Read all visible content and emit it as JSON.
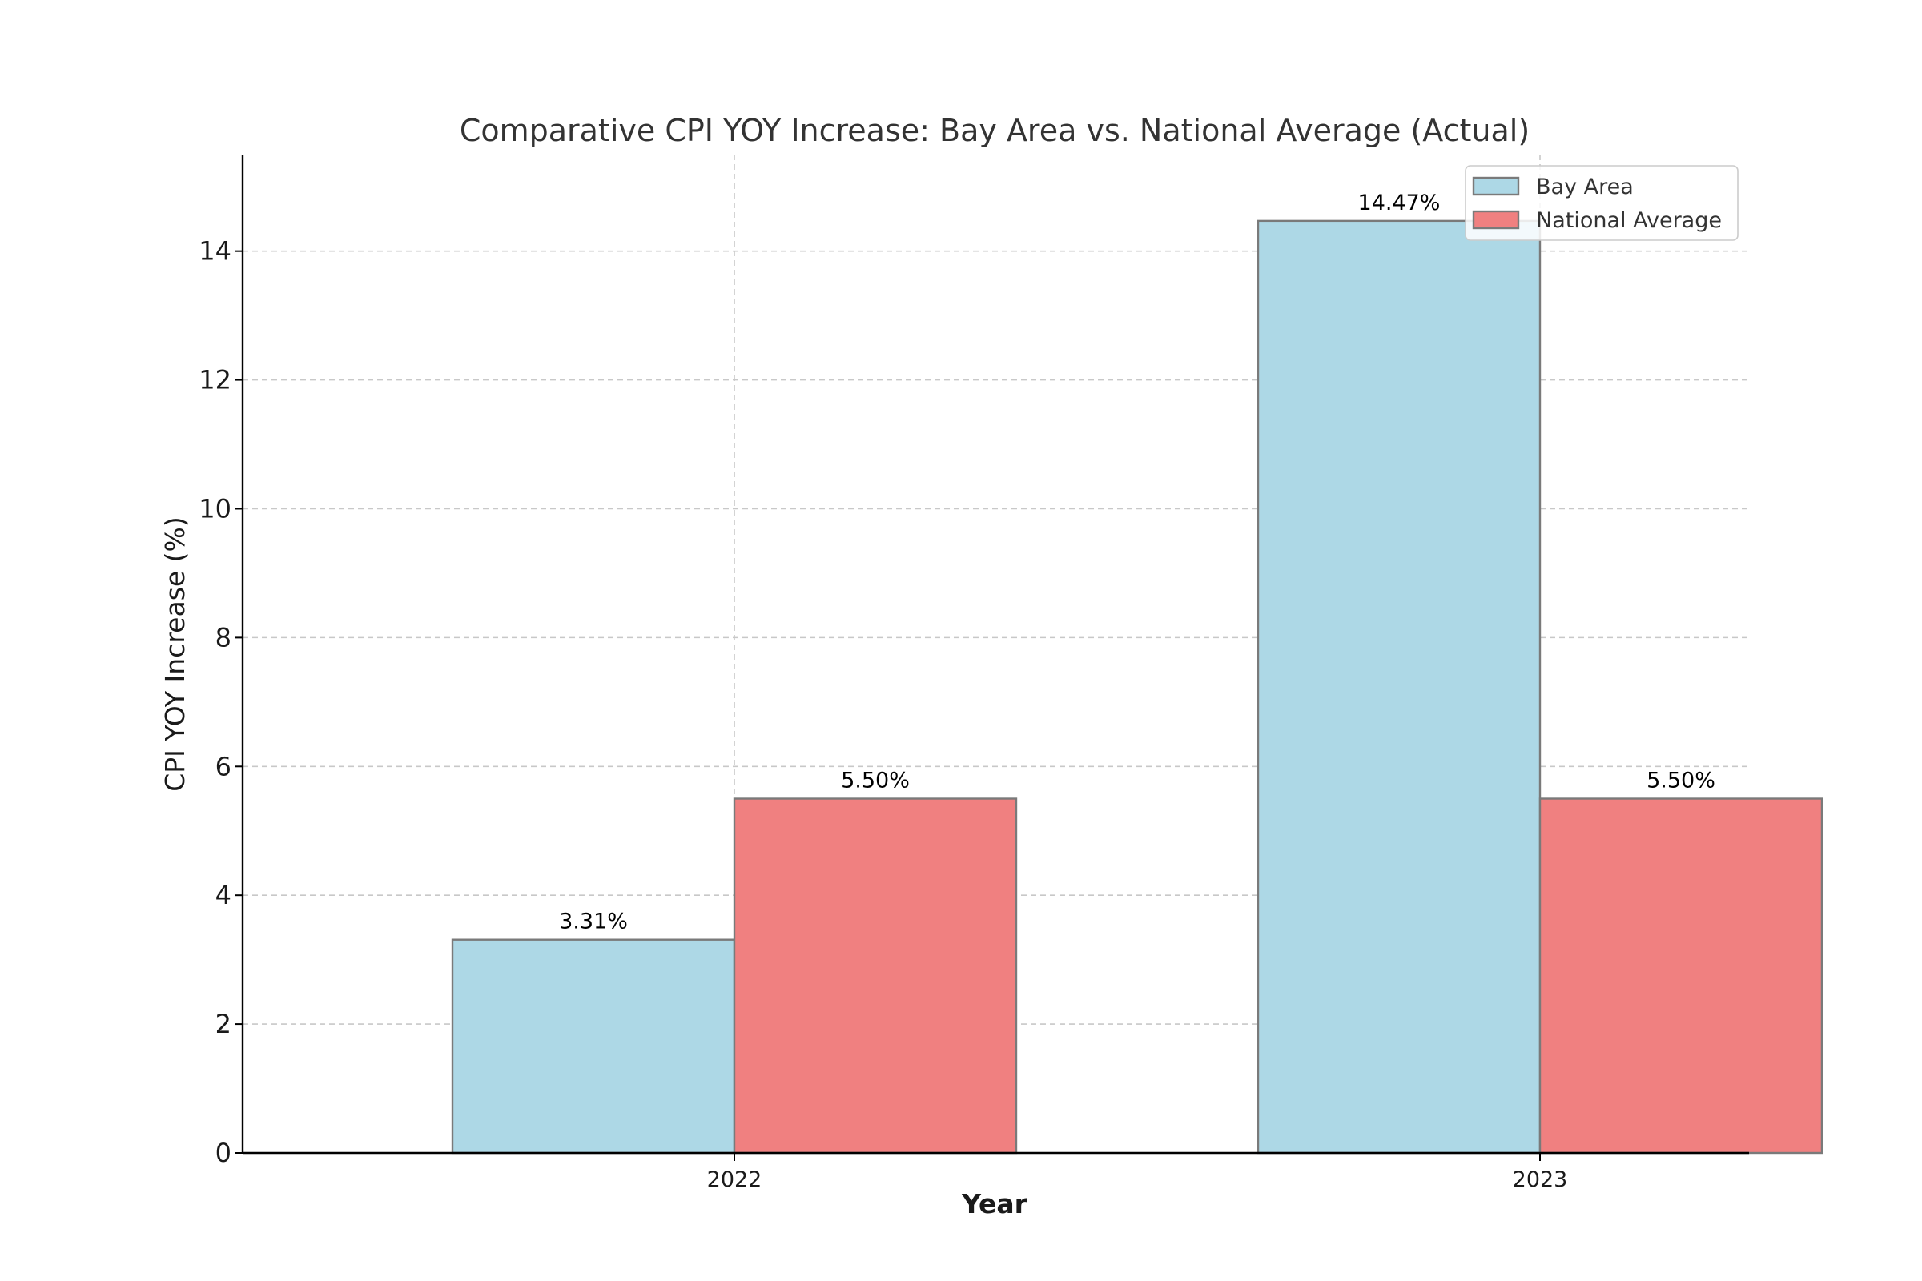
{
  "chart_data": {
    "type": "bar",
    "title": "Comparative CPI YOY Increase: Bay Area vs. National Average (Actual)",
    "xlabel": "Year",
    "ylabel": "CPI YOY Increase (%)",
    "categories": [
      "2022",
      "2023"
    ],
    "series": [
      {
        "name": "Bay Area",
        "values": [
          3.31,
          14.47
        ],
        "labels": [
          "3.31%",
          "14.47%"
        ],
        "color": "#add8e6"
      },
      {
        "name": "National Average",
        "values": [
          5.5,
          5.5
        ],
        "labels": [
          "5.50%",
          "5.50%"
        ],
        "color": "#f08080"
      }
    ],
    "ylim": [
      0,
      15.5
    ],
    "yticks": [
      0,
      2,
      4,
      6,
      8,
      10,
      12,
      14
    ],
    "grid": true,
    "legend_position": "top-right"
  }
}
